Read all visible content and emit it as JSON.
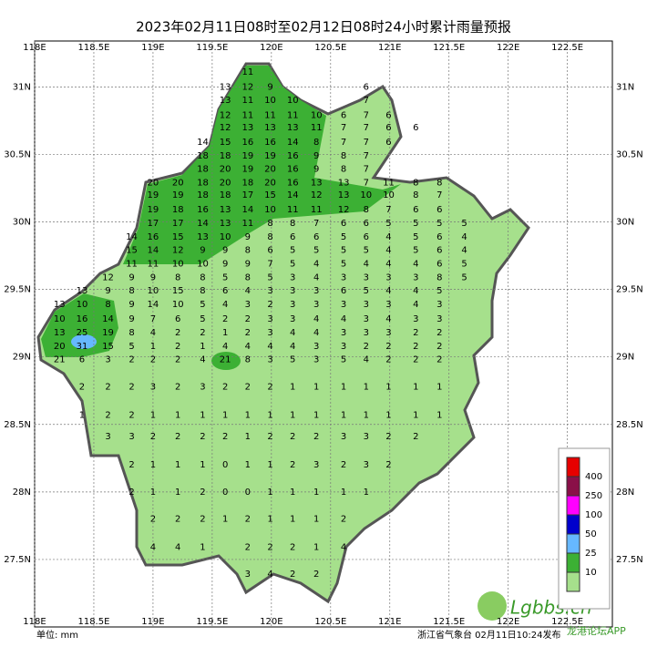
{
  "header": {
    "title": "2023年02月11日08时至02月12日08时24小时累计雨量预报"
  },
  "map": {
    "lon_range": [
      118,
      122.88
    ],
    "lat_range": [
      27.0,
      31.34
    ],
    "lon_ticks": [
      {
        "value": 118,
        "label": "118E"
      },
      {
        "value": 118.5,
        "label": "118.5E"
      },
      {
        "value": 119,
        "label": "119E"
      },
      {
        "value": 119.5,
        "label": "119.5E"
      },
      {
        "value": 120,
        "label": "120E"
      },
      {
        "value": 120.5,
        "label": "120.5E"
      },
      {
        "value": 121,
        "label": "121E"
      },
      {
        "value": 121.5,
        "label": "121.5E"
      },
      {
        "value": 122,
        "label": "122E"
      },
      {
        "value": 122.5,
        "label": "122.5E"
      }
    ],
    "lat_ticks": [
      {
        "value": 31,
        "label": "31N"
      },
      {
        "value": 30.5,
        "label": "30.5N"
      },
      {
        "value": 30,
        "label": "30N"
      },
      {
        "value": 29.5,
        "label": "29.5N"
      },
      {
        "value": 29,
        "label": "29N"
      },
      {
        "value": 28.5,
        "label": "28.5N"
      },
      {
        "value": 28,
        "label": "28N"
      },
      {
        "value": 27.5,
        "label": "27.5N"
      }
    ],
    "columns_lon": [
      118.21,
      118.4,
      118.62,
      118.82,
      119.0,
      119.21,
      119.42,
      119.61,
      119.8,
      119.99,
      120.18,
      120.38,
      120.61,
      120.8,
      120.99,
      121.22,
      121.42,
      121.63
    ],
    "rows": [
      {
        "lat": 31.11,
        "values": [
          null,
          null,
          null,
          null,
          null,
          null,
          null,
          null,
          11,
          null,
          null,
          null,
          null,
          null,
          null,
          null,
          null,
          null
        ]
      },
      {
        "lat": 31.0,
        "values": [
          null,
          null,
          null,
          null,
          null,
          null,
          null,
          13,
          12,
          9,
          null,
          null,
          null,
          6,
          null,
          null,
          null,
          null
        ]
      },
      {
        "lat": 30.9,
        "values": [
          null,
          null,
          null,
          null,
          null,
          null,
          null,
          13,
          11,
          10,
          10,
          null,
          null,
          7,
          null,
          null,
          null,
          null
        ]
      },
      {
        "lat": 30.79,
        "values": [
          null,
          null,
          null,
          null,
          null,
          null,
          null,
          12,
          11,
          11,
          11,
          10,
          6,
          7,
          6,
          null,
          null,
          null
        ]
      },
      {
        "lat": 30.7,
        "values": [
          null,
          null,
          null,
          null,
          null,
          null,
          null,
          12,
          13,
          13,
          13,
          11,
          7,
          7,
          6,
          6,
          null,
          null
        ]
      },
      {
        "lat": 30.59,
        "values": [
          null,
          null,
          null,
          null,
          null,
          null,
          14,
          15,
          16,
          16,
          14,
          8,
          7,
          7,
          6,
          null,
          null,
          null
        ]
      },
      {
        "lat": 30.49,
        "values": [
          null,
          null,
          null,
          null,
          null,
          null,
          18,
          18,
          19,
          19,
          16,
          9,
          8,
          7,
          null,
          null,
          null,
          null
        ]
      },
      {
        "lat": 30.39,
        "values": [
          null,
          null,
          null,
          null,
          null,
          null,
          18,
          20,
          19,
          20,
          16,
          9,
          8,
          7,
          null,
          null,
          null,
          null
        ]
      },
      {
        "lat": 30.29,
        "values": [
          null,
          null,
          null,
          null,
          20,
          20,
          18,
          20,
          18,
          20,
          16,
          13,
          13,
          7,
          11,
          8,
          8,
          null
        ]
      },
      {
        "lat": 30.2,
        "values": [
          null,
          null,
          null,
          null,
          19,
          19,
          18,
          18,
          17,
          15,
          14,
          12,
          13,
          10,
          10,
          8,
          7,
          null
        ]
      },
      {
        "lat": 30.09,
        "values": [
          null,
          null,
          null,
          null,
          19,
          18,
          16,
          13,
          14,
          10,
          11,
          11,
          12,
          8,
          7,
          6,
          6,
          null
        ]
      },
      {
        "lat": 29.99,
        "values": [
          null,
          null,
          null,
          null,
          17,
          17,
          14,
          13,
          11,
          8,
          8,
          7,
          6,
          6,
          5,
          5,
          5,
          5
        ]
      },
      {
        "lat": 29.89,
        "values": [
          null,
          null,
          null,
          14,
          16,
          15,
          13,
          10,
          9,
          8,
          6,
          6,
          5,
          6,
          4,
          5,
          6,
          4
        ]
      },
      {
        "lat": 29.79,
        "values": [
          null,
          null,
          null,
          15,
          14,
          12,
          9,
          9,
          8,
          6,
          5,
          5,
          5,
          5,
          4,
          5,
          6,
          4
        ]
      },
      {
        "lat": 29.69,
        "values": [
          null,
          null,
          null,
          11,
          11,
          10,
          10,
          9,
          9,
          7,
          5,
          4,
          5,
          4,
          4,
          4,
          6,
          5
        ]
      },
      {
        "lat": 29.59,
        "values": [
          null,
          null,
          12,
          9,
          9,
          8,
          8,
          5,
          8,
          5,
          3,
          4,
          3,
          3,
          3,
          3,
          8,
          5
        ]
      },
      {
        "lat": 29.49,
        "values": [
          null,
          13,
          9,
          8,
          10,
          15,
          8,
          6,
          4,
          3,
          3,
          3,
          6,
          5,
          4,
          4,
          5,
          null
        ]
      },
      {
        "lat": 29.39,
        "values": [
          13,
          10,
          8,
          9,
          14,
          10,
          5,
          4,
          3,
          2,
          3,
          3,
          3,
          3,
          3,
          4,
          3,
          null
        ]
      },
      {
        "lat": 29.28,
        "values": [
          10,
          16,
          14,
          9,
          7,
          6,
          5,
          2,
          2,
          3,
          3,
          4,
          4,
          3,
          4,
          3,
          3,
          null
        ]
      },
      {
        "lat": 29.18,
        "values": [
          13,
          25,
          19,
          8,
          4,
          2,
          2,
          1,
          2,
          3,
          4,
          4,
          3,
          3,
          3,
          2,
          2,
          null
        ]
      },
      {
        "lat": 29.08,
        "values": [
          20,
          31,
          15,
          5,
          1,
          2,
          1,
          4,
          4,
          4,
          4,
          3,
          3,
          2,
          2,
          2,
          2,
          null
        ]
      },
      {
        "lat": 28.98,
        "values": [
          21,
          6,
          3,
          2,
          2,
          2,
          4,
          21,
          8,
          3,
          5,
          3,
          5,
          4,
          2,
          2,
          2,
          null
        ]
      },
      {
        "lat": 28.78,
        "values": [
          null,
          2,
          2,
          2,
          3,
          2,
          3,
          2,
          2,
          2,
          1,
          1,
          1,
          1,
          1,
          1,
          1,
          null
        ]
      },
      {
        "lat": 28.57,
        "values": [
          null,
          1,
          2,
          2,
          1,
          1,
          1,
          1,
          1,
          1,
          1,
          1,
          1,
          1,
          1,
          1,
          1,
          null
        ]
      },
      {
        "lat": 28.41,
        "values": [
          null,
          null,
          3,
          3,
          2,
          2,
          2,
          2,
          1,
          2,
          2,
          2,
          3,
          3,
          2,
          2,
          null,
          null
        ]
      },
      {
        "lat": 28.2,
        "values": [
          null,
          null,
          null,
          2,
          1,
          1,
          1,
          0,
          1,
          1,
          2,
          3,
          2,
          3,
          2,
          null,
          null,
          null
        ]
      },
      {
        "lat": 28.0,
        "values": [
          null,
          null,
          null,
          2,
          1,
          1,
          2,
          0,
          0,
          1,
          1,
          1,
          1,
          1,
          null,
          null,
          null,
          null
        ]
      },
      {
        "lat": 27.8,
        "values": [
          null,
          null,
          null,
          null,
          2,
          2,
          2,
          1,
          2,
          1,
          1,
          1,
          2,
          null,
          null,
          null,
          null,
          null
        ]
      },
      {
        "lat": 27.59,
        "values": [
          null,
          null,
          null,
          null,
          4,
          4,
          1,
          null,
          2,
          2,
          2,
          1,
          4,
          null,
          null,
          null,
          null,
          null
        ]
      },
      {
        "lat": 27.39,
        "values": [
          null,
          null,
          null,
          null,
          null,
          null,
          null,
          null,
          3,
          4,
          2,
          2,
          null,
          null,
          null,
          null,
          null,
          null
        ]
      }
    ]
  },
  "legend": {
    "levels": [
      {
        "value": 400,
        "color": "#e60000"
      },
      {
        "value": 250,
        "color": "#8a1048"
      },
      {
        "value": 100,
        "color": "#ff00ff"
      },
      {
        "value": 50,
        "color": "#0000cc"
      },
      {
        "value": 25,
        "color": "#66b8ff"
      },
      {
        "value": 10,
        "color": "#3cb034"
      }
    ],
    "base_color": "#a6e08c"
  },
  "footer": {
    "unit": "单位: mm",
    "source": "浙江省气象台 02月11日10:24发布"
  },
  "watermark": {
    "site": "Lgbbs.cn",
    "app": "龙港论坛APP"
  }
}
